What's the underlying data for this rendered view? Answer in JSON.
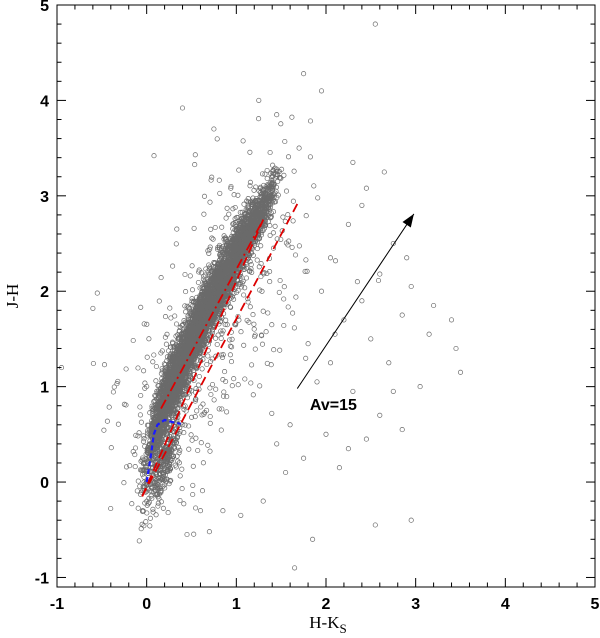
{
  "chart_data": {
    "type": "scatter",
    "xlabel": "H-K",
    "xlabel_sub": "S",
    "ylabel": "J-H",
    "xlim": [
      -1,
      5
    ],
    "ylim": [
      -1.1,
      5
    ],
    "x_ticks": [
      "-1",
      "0",
      "1",
      "2",
      "3",
      "4",
      "5"
    ],
    "x_tick_values": [
      -1,
      0,
      1,
      2,
      3,
      4,
      5
    ],
    "y_ticks": [
      "-1",
      "0",
      "1",
      "2",
      "3",
      "4",
      "5"
    ],
    "y_tick_values": [
      -1,
      0,
      1,
      2,
      3,
      4,
      5
    ],
    "grid": false,
    "colors": {
      "points": "#6b6b6b",
      "cttsLocus": "#dd0000",
      "reddening": "#dd0000",
      "dwarfLocus": "#1a1aff",
      "arrow": "#000000"
    },
    "annotations": [
      {
        "text": "Av=15",
        "x": 1.82,
        "y": 0.82
      }
    ],
    "reddening_vector": {
      "x0": 1.68,
      "y0": 0.98,
      "x1": 2.98,
      "y1": 2.81
    },
    "ctts_locus": [
      [
        0.16,
        0.77
      ],
      [
        1.3,
        2.75
      ]
    ],
    "reddening_lines": [
      [
        [
          -0.05,
          -0.15
        ],
        [
          1.3,
          2.75
        ]
      ],
      [
        [
          -0.05,
          -0.15
        ],
        [
          1.7,
          2.95
        ]
      ]
    ],
    "dwarf_locus": [
      [
        0.0,
        0.0
      ],
      [
        0.05,
        0.3
      ],
      [
        0.08,
        0.5
      ],
      [
        0.12,
        0.6
      ],
      [
        0.2,
        0.65
      ],
      [
        0.28,
        0.63
      ],
      [
        0.38,
        0.61
      ]
    ],
    "dense_band": [
      {
        "x": 0.15,
        "y": 0.7,
        "sx": 0.12,
        "sy": 0.35,
        "n": 700
      },
      {
        "x": 0.3,
        "y": 1.05,
        "sx": 0.13,
        "sy": 0.3,
        "n": 900
      },
      {
        "x": 0.5,
        "y": 1.45,
        "sx": 0.13,
        "sy": 0.3,
        "n": 950
      },
      {
        "x": 0.7,
        "y": 1.85,
        "sx": 0.13,
        "sy": 0.28,
        "n": 900
      },
      {
        "x": 0.9,
        "y": 2.2,
        "sx": 0.13,
        "sy": 0.27,
        "n": 800
      },
      {
        "x": 1.1,
        "y": 2.55,
        "sx": 0.12,
        "sy": 0.25,
        "n": 600
      },
      {
        "x": 1.3,
        "y": 2.85,
        "sx": 0.11,
        "sy": 0.2,
        "n": 320
      },
      {
        "x": 0.2,
        "y": 0.2,
        "sx": 0.12,
        "sy": 0.25,
        "n": 260
      }
    ],
    "outliers": [
      [
        2.55,
        4.8
      ],
      [
        1.75,
        4.28
      ],
      [
        1.95,
        4.1
      ],
      [
        2.3,
        3.35
      ],
      [
        2.45,
        3.08
      ],
      [
        2.65,
        3.25
      ],
      [
        2.4,
        2.9
      ],
      [
        2.25,
        2.7
      ],
      [
        2.75,
        2.5
      ],
      [
        2.9,
        2.35
      ],
      [
        2.6,
        2.18
      ],
      [
        2.95,
        2.05
      ],
      [
        3.2,
        1.85
      ],
      [
        3.15,
        1.55
      ],
      [
        3.4,
        1.7
      ],
      [
        3.5,
        1.15
      ],
      [
        2.7,
        1.25
      ],
      [
        2.2,
        1.7
      ],
      [
        2.05,
        1.25
      ],
      [
        1.9,
        1.05
      ],
      [
        2.3,
        0.95
      ],
      [
        2.6,
        0.7
      ],
      [
        2.85,
        0.55
      ],
      [
        2.45,
        0.45
      ],
      [
        2.0,
        0.5
      ],
      [
        1.75,
        0.25
      ],
      [
        2.15,
        0.15
      ],
      [
        2.55,
        -0.45
      ],
      [
        2.95,
        -0.4
      ],
      [
        1.85,
        -0.6
      ],
      [
        1.65,
        -0.9
      ],
      [
        0.7,
        -0.52
      ],
      [
        0.45,
        -0.55
      ],
      [
        -0.55,
        1.98
      ],
      [
        -0.6,
        1.82
      ],
      [
        -0.95,
        1.2
      ],
      [
        0.4,
        3.92
      ],
      [
        0.75,
        3.7
      ],
      [
        1.25,
        4.0
      ],
      [
        1.45,
        3.85
      ],
      [
        2.05,
        2.35
      ],
      [
        2.35,
        2.1
      ],
      [
        1.95,
        2.0
      ],
      [
        2.1,
        1.55
      ],
      [
        1.8,
        1.45
      ],
      [
        2.5,
        1.5
      ],
      [
        3.05,
        1.0
      ],
      [
        2.75,
        0.95
      ],
      [
        2.25,
        0.35
      ],
      [
        1.55,
        0.1
      ],
      [
        1.3,
        -0.2
      ],
      [
        1.05,
        -0.35
      ],
      [
        0.85,
        -0.3
      ],
      [
        0.6,
        -0.3
      ],
      [
        3.45,
        1.4
      ],
      [
        2.85,
        1.75
      ],
      [
        1.6,
        0.6
      ],
      [
        1.45,
        0.4
      ],
      [
        2.4,
        1.9
      ],
      [
        1.7,
        3.5
      ]
    ]
  }
}
